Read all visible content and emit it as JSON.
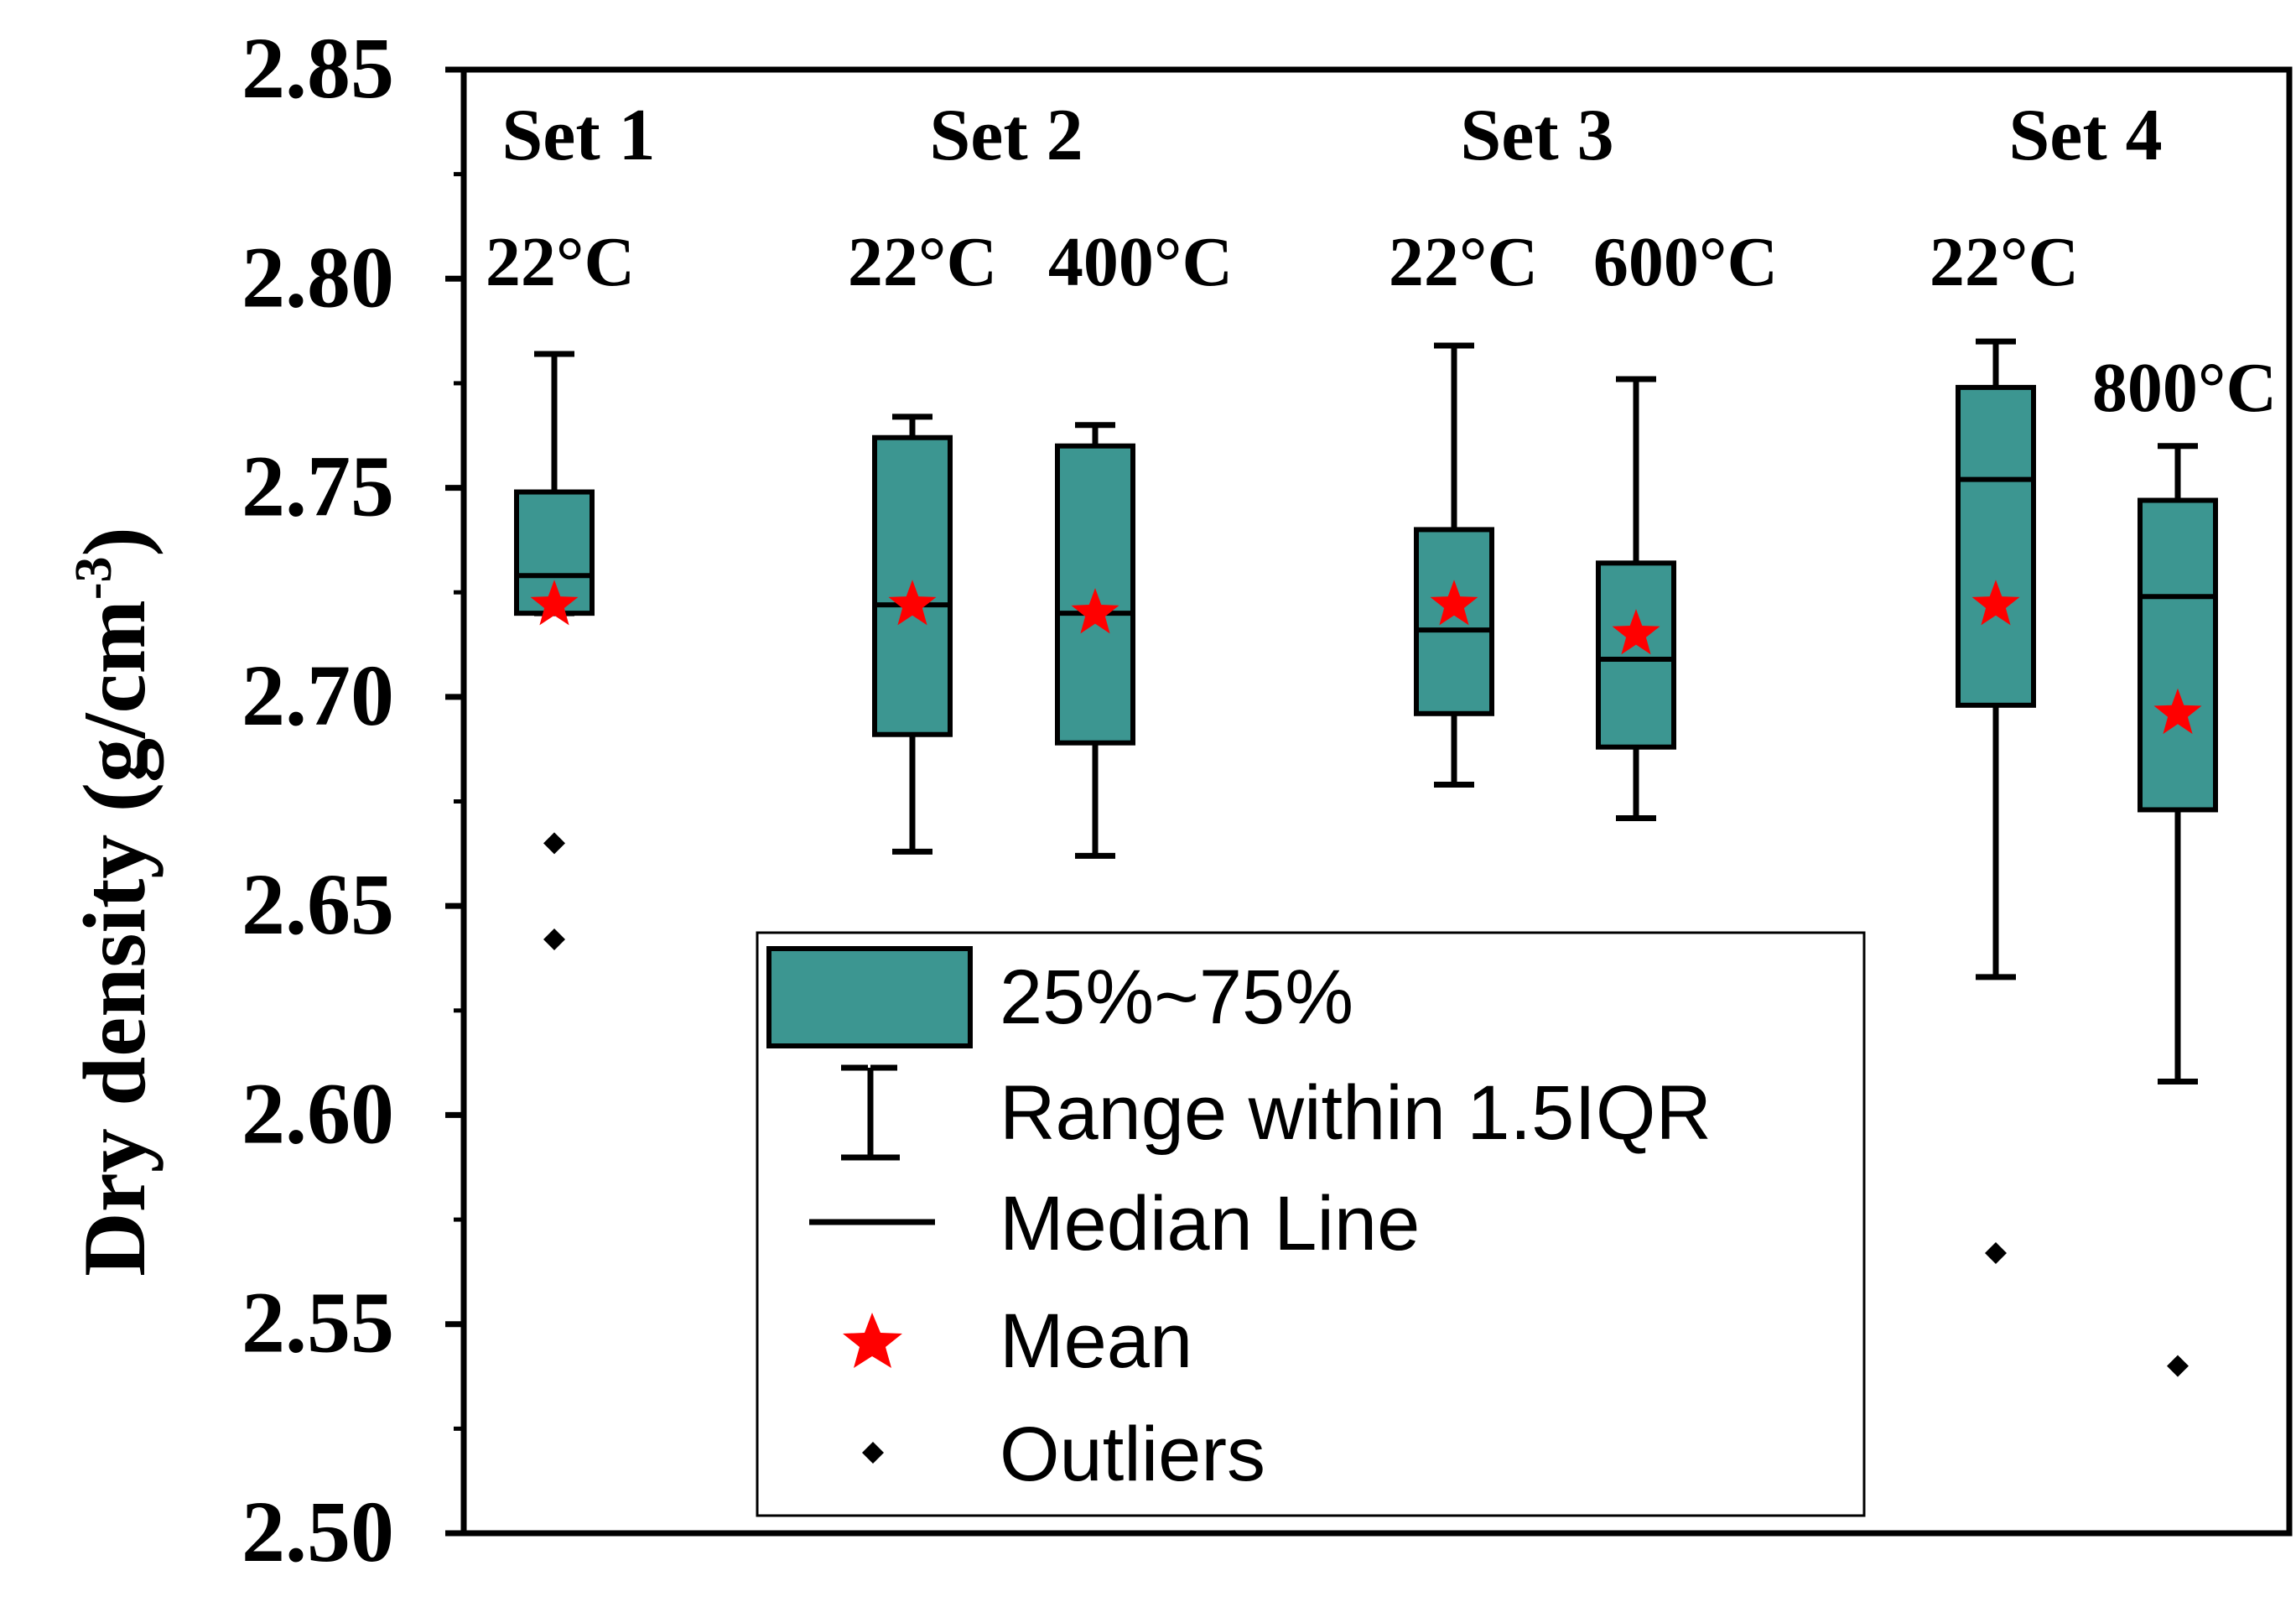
{
  "chart_data": {
    "type": "box",
    "ylabel_main": "Dry density (g/cm",
    "ylabel_sup": "-3",
    "ylabel_close": ")",
    "ylim": [
      2.5,
      2.85
    ],
    "y_ticks": [
      {
        "value": 2.5,
        "label": "2.50"
      },
      {
        "value": 2.55,
        "label": "2.55"
      },
      {
        "value": 2.6,
        "label": "2.60"
      },
      {
        "value": 2.65,
        "label": "2.65"
      },
      {
        "value": 2.7,
        "label": "2.70"
      },
      {
        "value": 2.75,
        "label": "2.75"
      },
      {
        "value": 2.8,
        "label": "2.80"
      },
      {
        "value": 2.85,
        "label": "2.85"
      }
    ],
    "sets": [
      {
        "label": "Set 1"
      },
      {
        "label": "Set 2"
      },
      {
        "label": "Set 3"
      },
      {
        "label": "Set 4"
      }
    ],
    "boxes": [
      {
        "set": "Set 1",
        "label": "22°C",
        "whisker_low": 2.72,
        "q1": 2.72,
        "median": 2.729,
        "q3": 2.749,
        "whisker_high": 2.782,
        "mean": 2.722,
        "outliers": [
          2.665,
          2.642
        ]
      },
      {
        "set": "Set 2",
        "label": "22°C",
        "whisker_low": 2.663,
        "q1": 2.691,
        "median": 2.722,
        "q3": 2.762,
        "whisker_high": 2.767,
        "mean": 2.722,
        "outliers": []
      },
      {
        "set": "Set 2",
        "label": "400°C",
        "whisker_low": 2.662,
        "q1": 2.689,
        "median": 2.72,
        "q3": 2.76,
        "whisker_high": 2.765,
        "mean": 2.72,
        "outliers": []
      },
      {
        "set": "Set 3",
        "label": "22°C",
        "whisker_low": 2.679,
        "q1": 2.696,
        "median": 2.716,
        "q3": 2.74,
        "whisker_high": 2.784,
        "mean": 2.722,
        "outliers": []
      },
      {
        "set": "Set 3",
        "label": "600°C",
        "whisker_low": 2.671,
        "q1": 2.688,
        "median": 2.709,
        "q3": 2.732,
        "whisker_high": 2.776,
        "mean": 2.715,
        "outliers": []
      },
      {
        "set": "Set 4",
        "label": "22°C",
        "whisker_low": 2.633,
        "q1": 2.698,
        "median": 2.752,
        "q3": 2.774,
        "whisker_high": 2.785,
        "mean": 2.722,
        "outliers": [
          2.567
        ]
      },
      {
        "set": "Set 4",
        "label": "800°C",
        "whisker_low": 2.608,
        "q1": 2.673,
        "median": 2.724,
        "q3": 2.747,
        "whisker_high": 2.76,
        "mean": 2.696,
        "outliers": [
          2.54
        ]
      }
    ],
    "legend": {
      "box": "25%~75%",
      "range": "Range within 1.5IQR",
      "median": "Median Line",
      "mean": "Mean",
      "outliers": "Outliers"
    },
    "colors": {
      "box_fill": "#3c9691",
      "stroke": "#000000",
      "mean": "#ff0000",
      "outlier": "#000000"
    }
  }
}
